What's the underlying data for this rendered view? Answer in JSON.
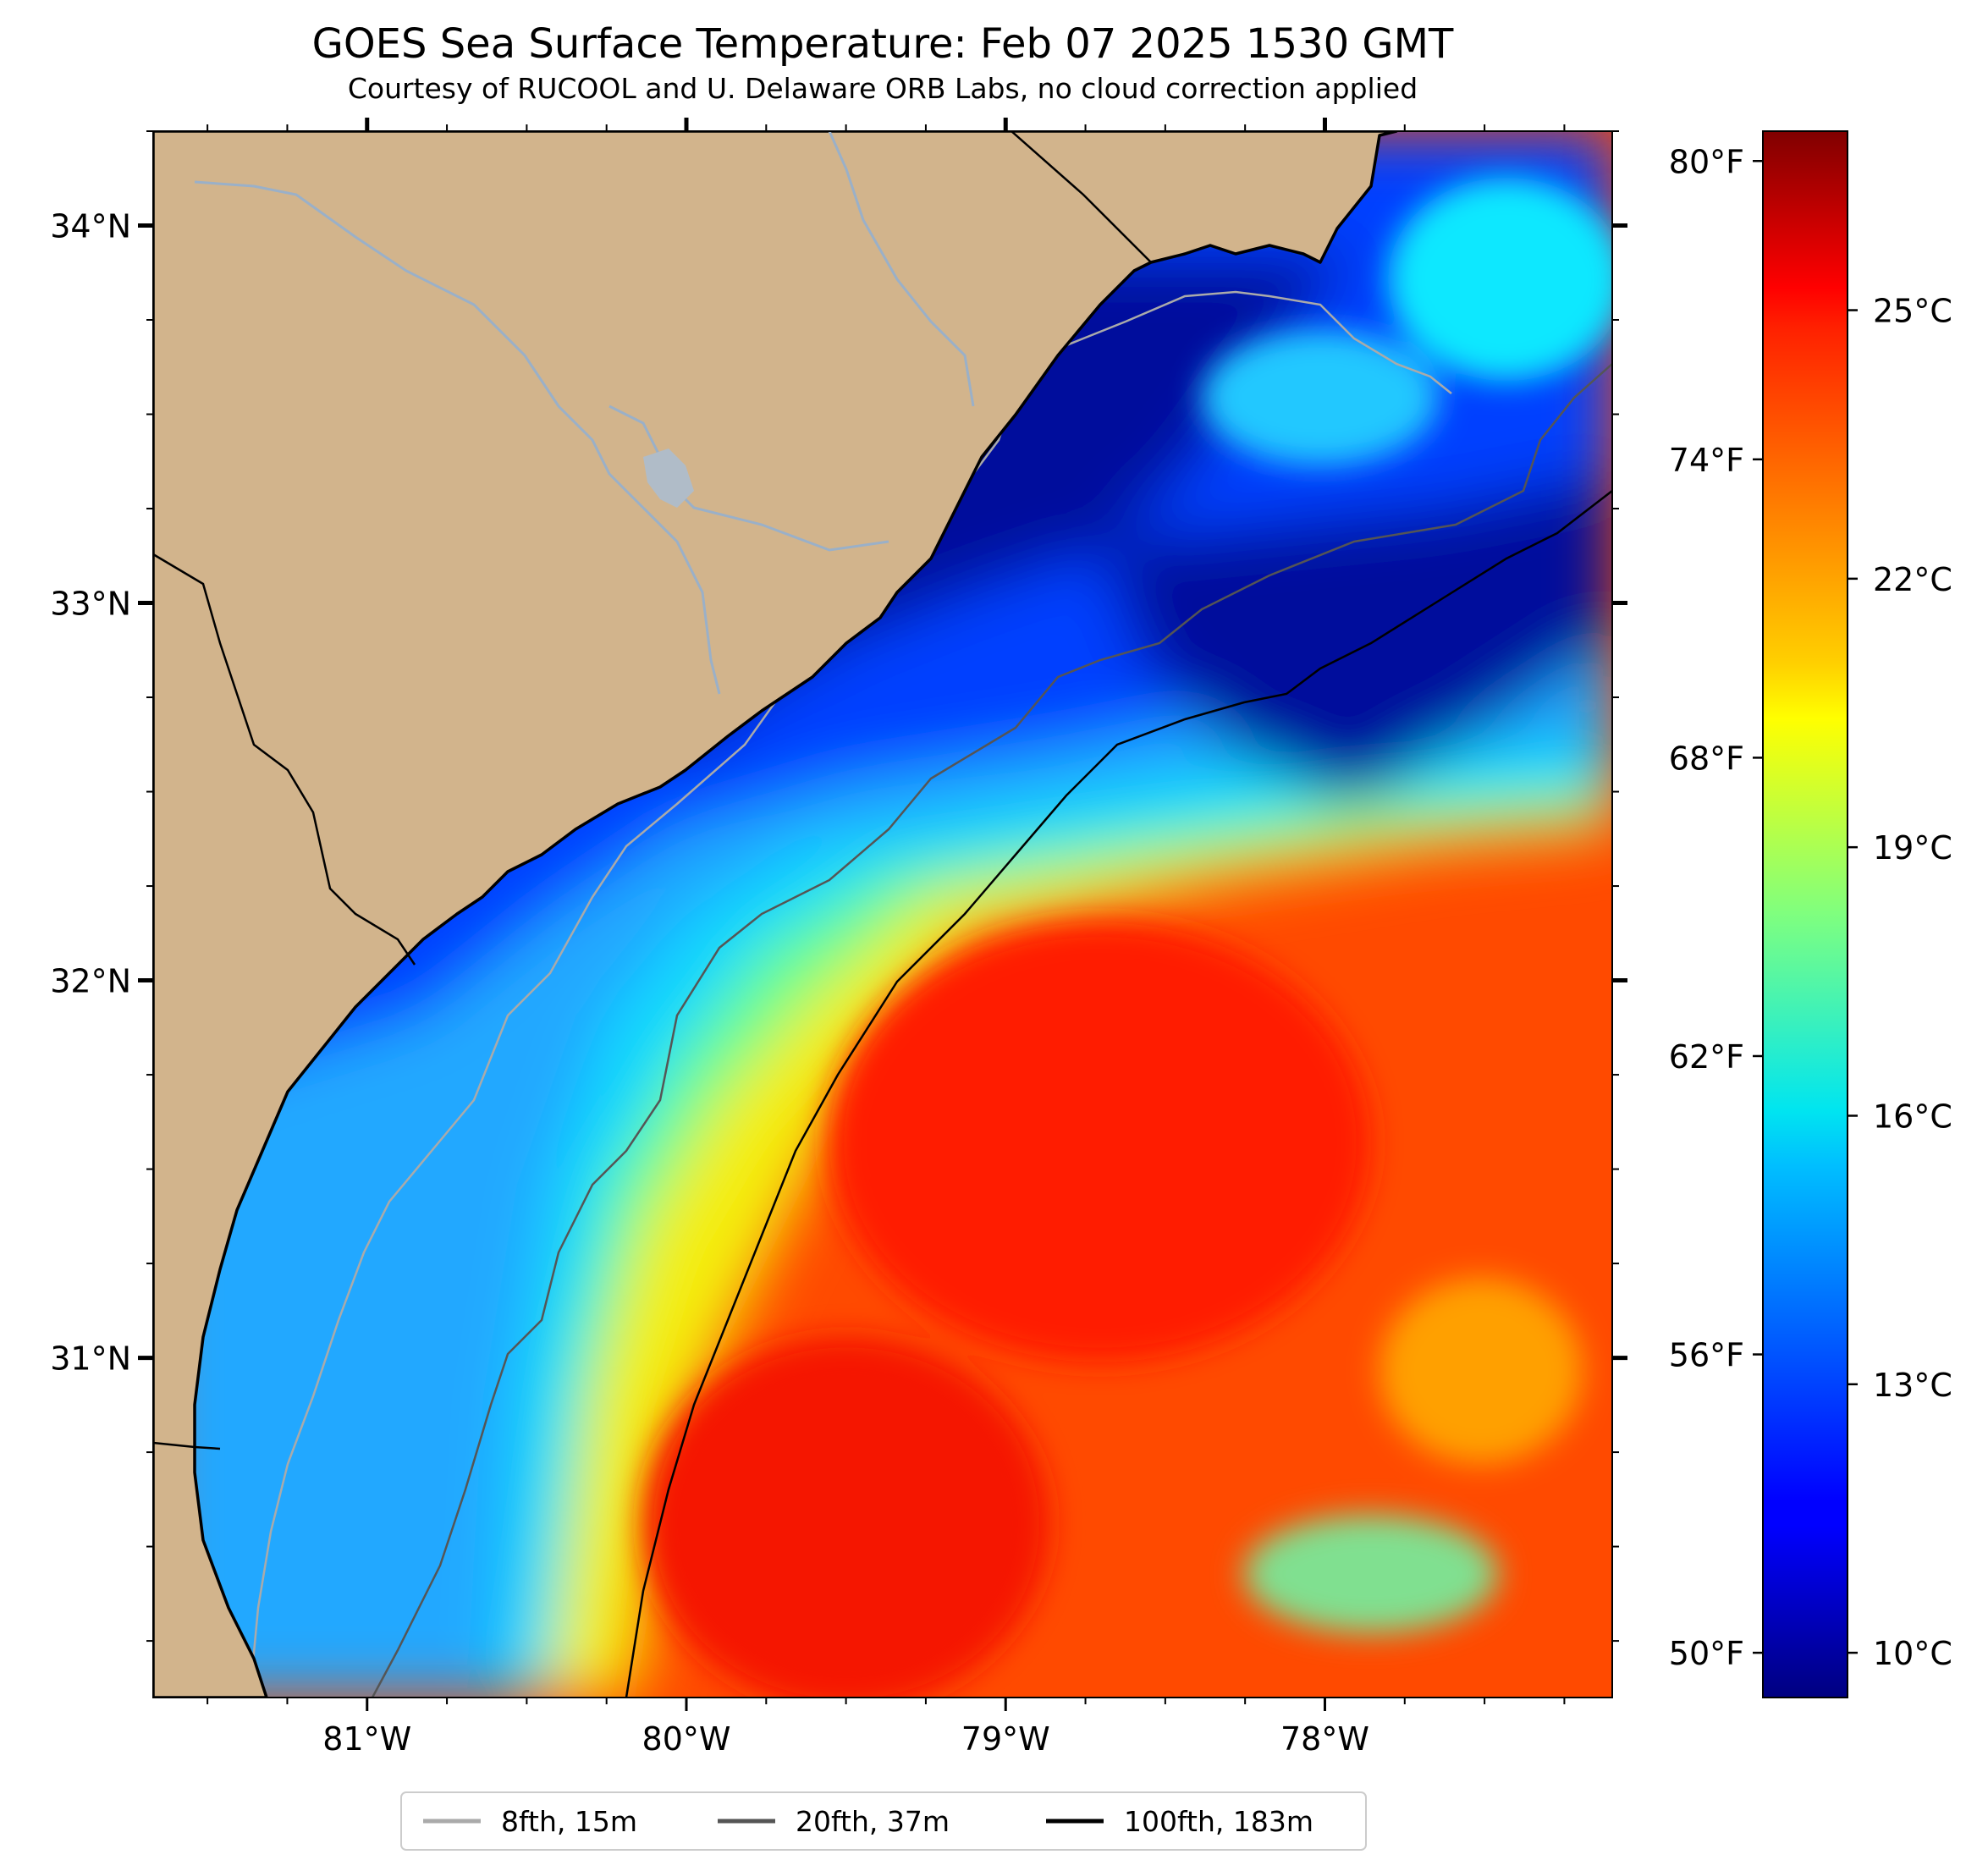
{
  "title": "GOES Sea Surface Temperature: Feb 07 2025 1530 GMT",
  "subtitle": "Courtesy of RUCOOL and U. Delaware ORB Labs, no cloud correction applied",
  "map": {
    "lon_range": [
      -81.67,
      -77.1
    ],
    "lat_range": [
      30.1,
      34.25
    ],
    "land_color": "#D2B48C",
    "lon_ticks": [
      {
        "value": -81,
        "label": "81°W"
      },
      {
        "value": -80,
        "label": "80°W"
      },
      {
        "value": -79,
        "label": "79°W"
      },
      {
        "value": -78,
        "label": "78°W"
      }
    ],
    "lat_ticks": [
      {
        "value": 34,
        "label": "34°N"
      },
      {
        "value": 33,
        "label": "33°N"
      },
      {
        "value": 32,
        "label": "32°N"
      },
      {
        "value": 31,
        "label": "31°N"
      }
    ]
  },
  "colorbar": {
    "colormap": "jet",
    "range_c": [
      9.5,
      27
    ],
    "celsius_labels": [
      {
        "value": 10,
        "label": "10°C"
      },
      {
        "value": 13,
        "label": "13°C"
      },
      {
        "value": 16,
        "label": "16°C"
      },
      {
        "value": 19,
        "label": "19°C"
      },
      {
        "value": 22,
        "label": "22°C"
      },
      {
        "value": 25,
        "label": "25°C"
      }
    ],
    "fahrenheit_labels": [
      {
        "value": 50,
        "label": "50°F"
      },
      {
        "value": 56,
        "label": "56°F"
      },
      {
        "value": 62,
        "label": "62°F"
      },
      {
        "value": 68,
        "label": "68°F"
      },
      {
        "value": 74,
        "label": "74°F"
      },
      {
        "value": 80,
        "label": "80°F"
      }
    ]
  },
  "legend": {
    "items": [
      {
        "label": "8fth, 15m",
        "color": "#aaaaaa"
      },
      {
        "label": "20fth, 37m",
        "color": "#555555"
      },
      {
        "label": "100fth, 183m",
        "color": "#000000"
      }
    ]
  }
}
